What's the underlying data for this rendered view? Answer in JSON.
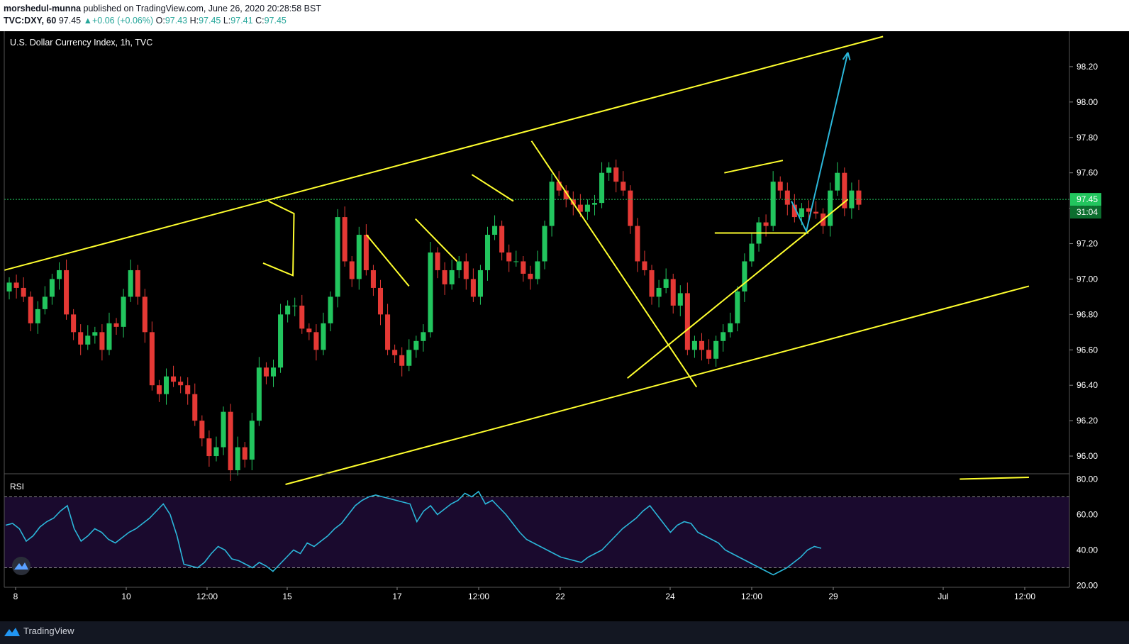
{
  "header": {
    "author": "morshedul-munna",
    "published": "published on TradingView.com, June 26, 2020 20:28:58 BST",
    "symbol": "TVC:DXY, 60",
    "last": "97.45",
    "change": "+0.06 (+0.06%)",
    "o_label": "O:",
    "o": "97.43",
    "h_label": "H:",
    "h": "97.45",
    "l_label": "L:",
    "l": "97.41",
    "c_label": "C:",
    "c": "97.45"
  },
  "footer": {
    "brand": "TradingView",
    "logo_icon": "tradingview-logo-icon"
  },
  "chart_data": [
    {
      "type": "candlestick",
      "title": "U.S. Dollar Currency Index, 1h, TVC",
      "xlabel": "",
      "ylabel": "",
      "ylim": [
        95.9,
        98.4
      ],
      "y_ticks": [
        "98.20",
        "98.00",
        "97.80",
        "97.60",
        "97.40",
        "97.20",
        "97.00",
        "96.80",
        "96.60",
        "96.40",
        "96.20",
        "96.00"
      ],
      "y_tick_values": [
        98.2,
        98.0,
        97.8,
        97.6,
        97.4,
        97.2,
        97.0,
        96.8,
        96.6,
        96.4,
        96.2,
        96.0
      ],
      "x_ticks": [
        "8",
        "10",
        "12:00",
        "15",
        "17",
        "12:00",
        "22",
        "24",
        "12:00",
        "29",
        "Jul",
        "12:00"
      ],
      "last_price": "97.45",
      "countdown": "31:04",
      "colors": {
        "up": "#22c55e",
        "down": "#e53935",
        "drawing": "#ffff2e",
        "projection": "#2bb7da",
        "price_line": "#22c55e"
      },
      "series": [
        {
          "close": [
            96.98,
            96.95,
            96.9,
            96.75,
            96.83,
            96.9,
            97.0,
            97.05,
            96.8,
            96.7,
            96.63,
            96.68,
            96.7,
            96.6,
            96.75,
            96.73,
            96.9,
            97.05,
            96.9,
            96.7,
            96.4,
            96.35,
            96.45,
            96.42,
            96.4,
            96.35,
            96.2,
            96.1,
            96.0,
            96.05,
            96.25,
            95.92,
            96.05,
            95.98,
            96.2,
            96.5,
            96.45,
            96.5,
            96.8,
            96.85,
            96.85,
            96.72,
            96.7,
            96.6,
            96.75,
            96.9,
            97.35,
            97.1,
            97.0,
            97.25,
            97.05,
            96.95,
            96.8,
            96.6,
            96.57,
            96.51,
            96.6,
            96.65,
            96.7,
            97.15,
            97.05,
            96.97,
            97.05,
            97.1,
            97.0,
            96.9,
            97.05,
            97.25,
            97.3,
            97.15,
            97.1,
            97.1,
            97.03,
            97.0,
            97.1,
            97.3,
            97.55,
            97.5,
            97.45,
            97.42,
            97.38,
            97.42,
            97.43,
            97.6,
            97.63,
            97.55,
            97.5,
            97.3,
            97.1,
            97.05,
            96.9,
            96.95,
            97.0,
            96.85,
            96.92,
            96.6,
            96.65,
            96.6,
            96.55,
            96.65,
            96.7,
            96.75,
            96.93,
            97.1,
            97.2,
            97.32,
            97.3,
            97.55,
            97.5,
            97.42,
            97.35,
            97.4,
            97.38,
            97.37,
            97.3,
            97.5,
            97.6,
            97.4,
            97.5,
            97.42
          ]
        }
      ],
      "drawings": {
        "upper_channel": [
          [
            0.0,
            97.05
          ],
          [
            0.825,
            98.37
          ]
        ],
        "lower_channel": [
          [
            0.264,
            95.84
          ],
          [
            0.962,
            96.96
          ]
        ],
        "lower_channel_ext": [
          [
            0.897,
            95.87
          ],
          [
            0.962,
            95.88
          ]
        ],
        "flag_1": [
          [
            0.243,
            97.09
          ],
          [
            0.271,
            97.02
          ],
          [
            0.272,
            97.37
          ],
          [
            0.248,
            97.44
          ]
        ],
        "flag_2": [
          [
            0.34,
            97.25
          ],
          [
            0.38,
            96.96
          ]
        ],
        "flag_3": [
          [
            0.386,
            97.34
          ],
          [
            0.425,
            97.1
          ]
        ],
        "flag_4": [
          [
            0.439,
            97.59
          ],
          [
            0.478,
            97.44
          ]
        ],
        "big_down_line": [
          [
            0.495,
            97.78
          ],
          [
            0.65,
            96.39
          ]
        ],
        "rising_support": [
          [
            0.585,
            96.44
          ],
          [
            0.792,
            97.45
          ]
        ],
        "top_range": [
          [
            0.676,
            97.6
          ],
          [
            0.731,
            97.67
          ]
        ],
        "bottom_range": [
          [
            0.667,
            97.26
          ],
          [
            0.755,
            97.26
          ]
        ],
        "projection": [
          [
            0.739,
            97.44
          ],
          [
            0.753,
            97.27
          ],
          [
            0.792,
            98.28
          ]
        ]
      }
    },
    {
      "type": "line",
      "title": "RSI",
      "ylim": [
        19,
        83
      ],
      "y_ticks": [
        "80.00",
        "60.00",
        "40.00",
        "20.00"
      ],
      "y_tick_values": [
        80,
        60,
        40,
        20
      ],
      "bands": [
        30,
        70
      ],
      "colors": {
        "line": "#2bb7da",
        "band": "#1a0a2e"
      },
      "series": [
        {
          "values": [
            54,
            55,
            52,
            45,
            48,
            53,
            56,
            58,
            62,
            65,
            52,
            45,
            48,
            52,
            50,
            46,
            44,
            47,
            50,
            52,
            55,
            58,
            62,
            66,
            60,
            48,
            32,
            31,
            30,
            33,
            38,
            42,
            40,
            35,
            34,
            32,
            30,
            33,
            31,
            28,
            32,
            36,
            40,
            38,
            44,
            42,
            45,
            48,
            52,
            55,
            60,
            65,
            68,
            70,
            71,
            70,
            69,
            68,
            67,
            66,
            56,
            62,
            65,
            60,
            63,
            66,
            68,
            72,
            70,
            73,
            66,
            68,
            64,
            60,
            55,
            50,
            46,
            44,
            42,
            40,
            38,
            36,
            35,
            34,
            33,
            36,
            38,
            40,
            44,
            48,
            52,
            55,
            58,
            62,
            65,
            60,
            55,
            50,
            54,
            56,
            55,
            50,
            48,
            46,
            44,
            40,
            38,
            36,
            34,
            32,
            30,
            28,
            26,
            28,
            30,
            33,
            36,
            40,
            42,
            41
          ]
        }
      ]
    }
  ]
}
